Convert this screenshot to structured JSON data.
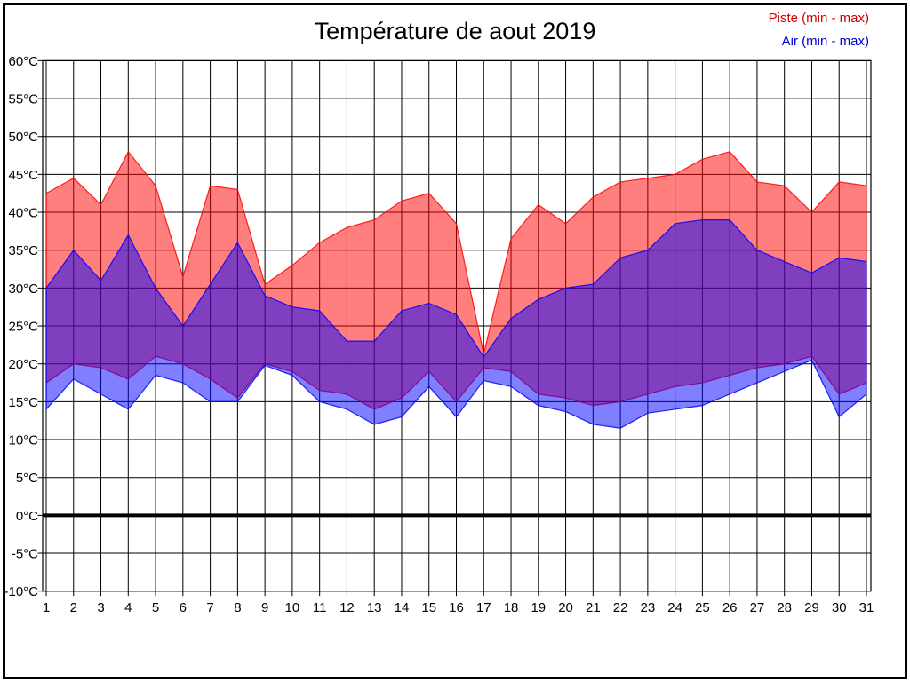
{
  "title": "Température de aout 2019",
  "legend": {
    "items": [
      {
        "label": "Piste (min - max)",
        "color": "#d40000"
      },
      {
        "label": "Air (min - max)",
        "color": "#0000d4"
      }
    ]
  },
  "chart_data": {
    "type": "area",
    "title": "Température de aout 2019",
    "xlabel": "",
    "ylabel": "",
    "x": [
      1,
      2,
      3,
      4,
      5,
      6,
      7,
      8,
      9,
      10,
      11,
      12,
      13,
      14,
      15,
      16,
      17,
      18,
      19,
      20,
      21,
      22,
      23,
      24,
      25,
      26,
      27,
      28,
      29,
      30,
      31
    ],
    "x_tick_labels": [
      "1",
      "2",
      "3",
      "4",
      "5",
      "6",
      "7",
      "8",
      "9",
      "10",
      "11",
      "12",
      "13",
      "14",
      "15",
      "16",
      "17",
      "18",
      "19",
      "20",
      "21",
      "22",
      "23",
      "24",
      "25",
      "26",
      "27",
      "28",
      "29",
      "30",
      "31"
    ],
    "ylim": [
      -10,
      60
    ],
    "y_tick_step": 5,
    "y_tick_labels": [
      "60°C",
      "55°C",
      "50°C",
      "45°C",
      "40°C",
      "35°C",
      "30°C",
      "25°C",
      "20°C",
      "15°C",
      "10°C",
      "5°C",
      "0°C",
      "-5°C",
      "-10°C"
    ],
    "grid": true,
    "zero_line": true,
    "legend_position": "top-right",
    "series": [
      {
        "name": "Piste (min - max)",
        "band": true,
        "color": "#ff0000",
        "fill_alpha": 0.5,
        "max": [
          42.5,
          44.5,
          41,
          48,
          43.5,
          31.5,
          43.5,
          43,
          30.5,
          33,
          36,
          38,
          39,
          41.5,
          42.5,
          38.5,
          21.3,
          36.5,
          41,
          38.5,
          42,
          44,
          44.5,
          45,
          47,
          48,
          44,
          43.5,
          40,
          44,
          43.5
        ],
        "min": [
          17.5,
          20,
          19.5,
          18,
          21,
          20,
          18,
          15.5,
          20,
          19,
          16.5,
          16,
          14,
          15.5,
          19,
          15,
          19.5,
          19,
          16,
          15.5,
          14.5,
          15,
          16,
          17,
          17.5,
          18.5,
          19.5,
          20,
          21,
          16,
          17.5
        ]
      },
      {
        "name": "Air (min - max)",
        "band": true,
        "color": "#0000ff",
        "fill_alpha": 0.5,
        "max": [
          30,
          35,
          31,
          37,
          30,
          25,
          30.5,
          36,
          29,
          27.5,
          27,
          23,
          23,
          27,
          28,
          26.5,
          20.9,
          26,
          28.5,
          30,
          30.5,
          34,
          35,
          38.5,
          39,
          39,
          35,
          33.5,
          32,
          34,
          33.5
        ],
        "min": [
          14,
          18,
          16,
          14,
          18.5,
          17.5,
          15,
          15,
          19.8,
          18.5,
          15,
          14,
          12,
          13,
          17,
          13,
          17.8,
          17,
          14.5,
          13.7,
          12,
          11.5,
          13.5,
          14,
          14.5,
          16,
          17.5,
          19,
          20.5,
          13,
          16
        ]
      }
    ]
  }
}
